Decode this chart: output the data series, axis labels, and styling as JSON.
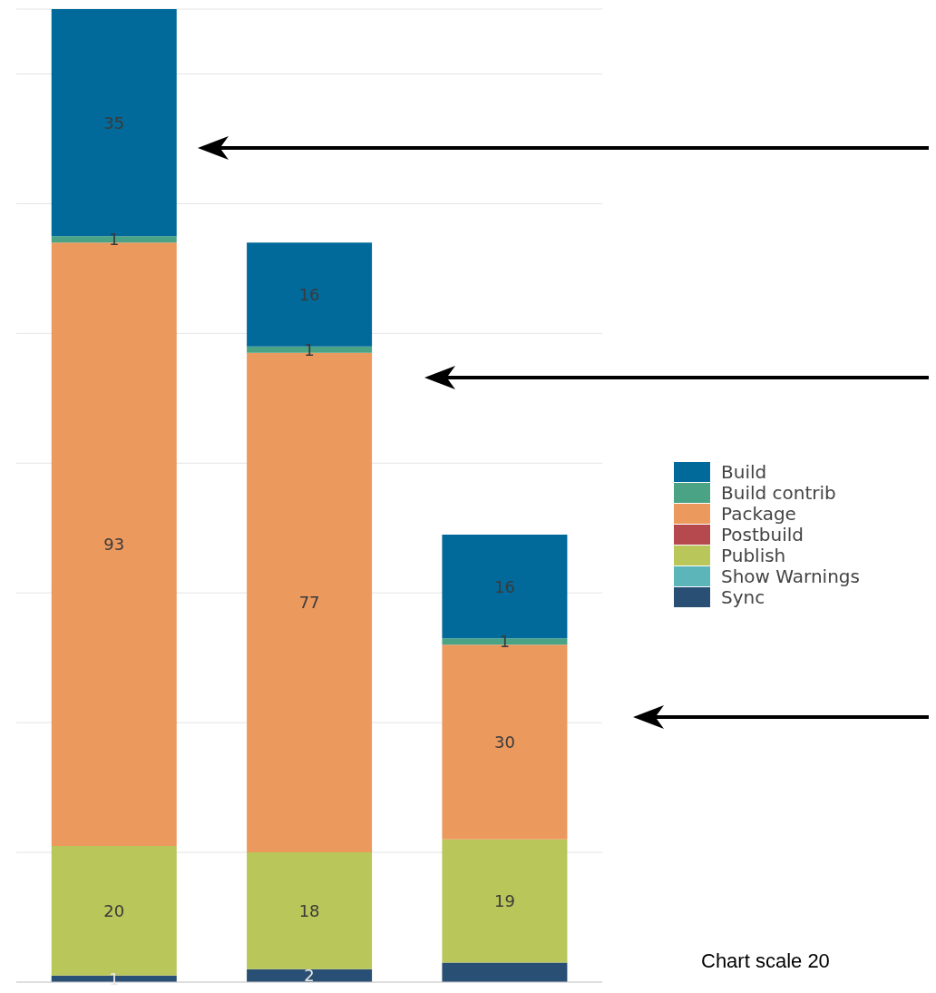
{
  "chart_data": {
    "type": "bar",
    "stacked": true,
    "categories": [
      null,
      null,
      null
    ],
    "series": [
      {
        "name": "Sync",
        "color": "#2a4f74",
        "values": [
          1,
          2,
          3
        ],
        "value_labels": [
          "1",
          "2",
          null
        ]
      },
      {
        "name": "Show Warnings",
        "color": "#5cb5b8",
        "values": [
          null,
          null,
          null
        ]
      },
      {
        "name": "Publish",
        "color": "#b8c65a",
        "values": [
          20,
          18,
          19
        ],
        "value_labels": [
          "20",
          "18",
          "19"
        ]
      },
      {
        "name": "Postbuild",
        "color": "#b5494e",
        "values": [
          null,
          null,
          null
        ]
      },
      {
        "name": "Package",
        "color": "#ec995e",
        "values": [
          93,
          77,
          30
        ],
        "value_labels": [
          "93",
          "77",
          "30"
        ]
      },
      {
        "name": "Build contrib",
        "color": "#4aa384",
        "values": [
          1,
          1,
          1
        ],
        "value_labels": [
          "1",
          "1",
          "1"
        ]
      },
      {
        "name": "Build",
        "color": "#026a9a",
        "values": [
          35,
          16,
          16
        ],
        "value_labels": [
          "35",
          "16",
          "16"
        ]
      }
    ],
    "ylim": [
      0,
      150
    ],
    "yticks": [
      0,
      20,
      40,
      60,
      80,
      100,
      120,
      140
    ],
    "tick_labels": false,
    "grid": "y",
    "legend": "right",
    "annotations": [
      "Chart scale 20"
    ]
  }
}
